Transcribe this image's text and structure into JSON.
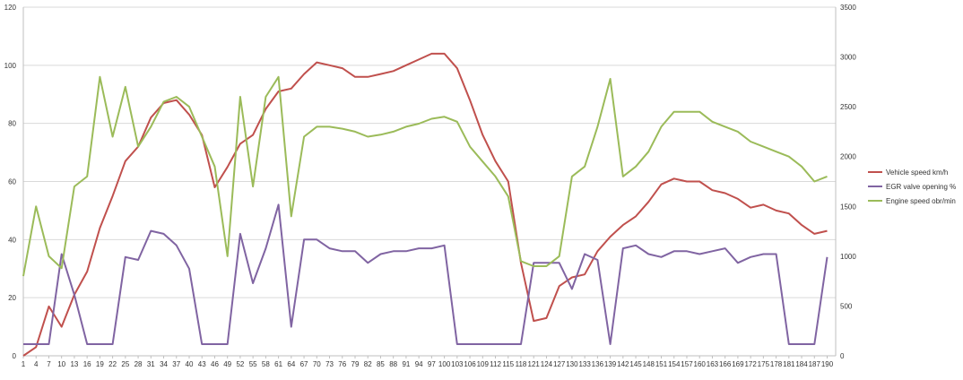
{
  "chart_data": {
    "type": "line",
    "title": "",
    "xlabel": "",
    "ylabel": "",
    "x_tick_labels": [
      "1",
      "4",
      "7",
      "10",
      "13",
      "16",
      "19",
      "22",
      "25",
      "28",
      "31",
      "34",
      "37",
      "40",
      "43",
      "46",
      "49",
      "52",
      "55",
      "58",
      "61",
      "64",
      "67",
      "70",
      "73",
      "76",
      "79",
      "82",
      "85",
      "88",
      "91",
      "94",
      "97",
      "100",
      "103",
      "106",
      "109",
      "112",
      "115",
      "118",
      "121",
      "124",
      "127",
      "130",
      "133",
      "136",
      "139",
      "142",
      "145",
      "148",
      "151",
      "154",
      "157",
      "160",
      "163",
      "166",
      "169",
      "172",
      "175",
      "178",
      "181",
      "184",
      "187",
      "190"
    ],
    "x": [
      1,
      4,
      7,
      10,
      13,
      16,
      19,
      22,
      25,
      28,
      31,
      34,
      37,
      40,
      43,
      46,
      49,
      52,
      55,
      58,
      61,
      64,
      67,
      70,
      73,
      76,
      79,
      82,
      85,
      88,
      91,
      94,
      97,
      100,
      103,
      106,
      109,
      112,
      115,
      118,
      121,
      124,
      127,
      130,
      133,
      136,
      139,
      142,
      145,
      148,
      151,
      154,
      157,
      160,
      163,
      166,
      169,
      172,
      175,
      178,
      181,
      184,
      187,
      190
    ],
    "xlim": [
      1,
      192
    ],
    "y_left": {
      "ylim": [
        0,
        120
      ],
      "ticks": [
        "0",
        "20",
        "40",
        "60",
        "80",
        "100",
        "120"
      ]
    },
    "y_right": {
      "ylim": [
        0,
        3500
      ],
      "ticks": [
        "0",
        "500",
        "1000",
        "1500",
        "2000",
        "2500",
        "3000",
        "3500"
      ]
    },
    "grid": "horizontal",
    "legend_position": "right",
    "series": [
      {
        "name": "Vehicle speed km/h",
        "axis": "left",
        "color": "#c0504d",
        "values": [
          0,
          3,
          17,
          10,
          21,
          29,
          44,
          55,
          67,
          72,
          82,
          87,
          88,
          83,
          76,
          58,
          65,
          73,
          76,
          85,
          91,
          92,
          97,
          101,
          100,
          99,
          96,
          96,
          97,
          98,
          100,
          102,
          104,
          104,
          99,
          88,
          76,
          67,
          60,
          32,
          12,
          13,
          24,
          27,
          28,
          36,
          41,
          45,
          48,
          53,
          59,
          61,
          60,
          60,
          57,
          56,
          54,
          51,
          52,
          50,
          49,
          45,
          42,
          43
        ]
      },
      {
        "name": "EGR valve opening %",
        "axis": "left",
        "color": "#8064a2",
        "values": [
          4,
          4,
          4,
          35,
          21,
          4,
          4,
          4,
          34,
          33,
          43,
          42,
          38,
          30,
          4,
          4,
          4,
          42,
          25,
          37,
          52,
          10,
          40,
          40,
          37,
          36,
          36,
          32,
          35,
          36,
          36,
          37,
          37,
          38,
          4,
          4,
          4,
          4,
          4,
          4,
          32,
          32,
          32,
          23,
          35,
          33,
          4,
          37,
          38,
          35,
          34,
          36,
          36,
          35,
          36,
          37,
          32,
          34,
          35,
          35,
          4,
          4,
          4,
          34
        ]
      },
      {
        "name": "Engine speed obr/min",
        "axis": "right",
        "color": "#9bbb59",
        "values": [
          800,
          1500,
          1000,
          880,
          1700,
          1800,
          2800,
          2200,
          2700,
          2100,
          2300,
          2550,
          2600,
          2500,
          2200,
          1900,
          1000,
          2600,
          1700,
          2600,
          2800,
          1400,
          2200,
          2300,
          2300,
          2280,
          2250,
          2200,
          2220,
          2250,
          2300,
          2330,
          2380,
          2400,
          2350,
          2100,
          1950,
          1800,
          1600,
          950,
          900,
          900,
          1000,
          1800,
          1900,
          2300,
          2780,
          1800,
          1900,
          2050,
          2300,
          2450,
          2450,
          2450,
          2350,
          2300,
          2250,
          2150,
          2100,
          2050,
          2000,
          1900,
          1750,
          1800
        ]
      }
    ]
  }
}
